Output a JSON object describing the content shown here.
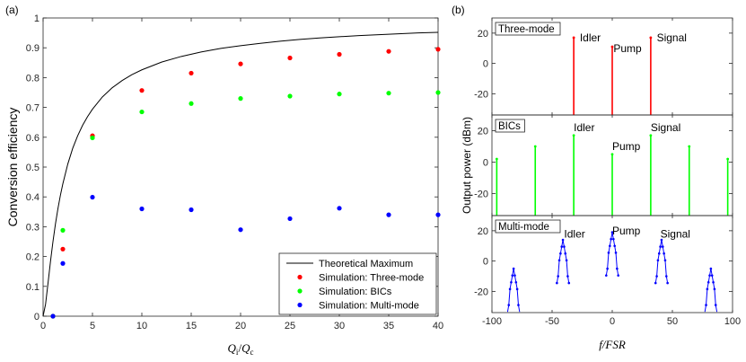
{
  "chart_data": [
    {
      "panel": "(a)",
      "type": "scatter",
      "xlabel": "Q_i/Q_c",
      "ylabel": "Conversion efficiency",
      "xlim": [
        0,
        40
      ],
      "ylim": [
        0,
        1
      ],
      "xticks": [
        0,
        5,
        10,
        15,
        20,
        25,
        30,
        35,
        40
      ],
      "yticks": [
        0,
        0.1,
        0.2,
        0.3,
        0.4,
        0.5,
        0.6,
        0.7,
        0.8,
        0.9,
        1
      ],
      "legend_position": "bottom-right",
      "grid": false,
      "series": [
        {
          "name": "Theoretical Maximum",
          "kind": "line",
          "color": "#000000",
          "x": [
            0,
            0.25,
            0.5,
            0.75,
            1,
            1.25,
            1.5,
            1.75,
            2,
            2.5,
            3,
            3.5,
            4,
            4.5,
            5,
            6,
            7,
            8,
            9,
            10,
            12,
            14,
            16,
            18,
            20,
            22,
            24,
            26,
            28,
            30,
            32,
            34,
            36,
            38,
            40
          ],
          "y": [
            0,
            0.04,
            0.111,
            0.184,
            0.25,
            0.309,
            0.36,
            0.405,
            0.444,
            0.51,
            0.563,
            0.605,
            0.64,
            0.669,
            0.694,
            0.735,
            0.766,
            0.79,
            0.81,
            0.826,
            0.852,
            0.871,
            0.886,
            0.898,
            0.907,
            0.915,
            0.922,
            0.928,
            0.933,
            0.937,
            0.941,
            0.944,
            0.947,
            0.95,
            0.952
          ]
        },
        {
          "name": "Simulation: Three-mode",
          "kind": "scatter",
          "color": "#ff0000",
          "x": [
            1,
            2,
            5,
            10,
            15,
            20,
            25,
            30,
            35,
            40
          ],
          "y": [
            0,
            0.225,
            0.605,
            0.757,
            0.815,
            0.846,
            0.866,
            0.878,
            0.888,
            0.895
          ]
        },
        {
          "name": "Simulation: BICs",
          "kind": "scatter",
          "color": "#00ff00",
          "x": [
            1,
            2,
            5,
            10,
            15,
            20,
            25,
            30,
            35,
            40
          ],
          "y": [
            0,
            0.288,
            0.598,
            0.685,
            0.713,
            0.73,
            0.738,
            0.745,
            0.748,
            0.75
          ]
        },
        {
          "name": "Simulation: Multi-mode",
          "kind": "scatter",
          "color": "#0000ff",
          "x": [
            1,
            2,
            5,
            10,
            15,
            20,
            25,
            30,
            35,
            40
          ],
          "y": [
            0,
            0.177,
            0.399,
            0.36,
            0.357,
            0.29,
            0.327,
            0.362,
            0.34,
            0.34
          ]
        }
      ]
    },
    {
      "panel": "(b)",
      "type": "line",
      "xlabel": "f/FSR",
      "ylabel": "Output power (dBm)",
      "xlim": [
        -100,
        100
      ],
      "xticks": [
        -100,
        -50,
        0,
        50,
        100
      ],
      "subplots": [
        {
          "tag": "Three-mode",
          "color": "#ff0000",
          "ylim": [
            -34,
            30
          ],
          "yticks": [
            -20,
            0,
            20
          ],
          "lines": [
            {
              "x": -32,
              "y": 17
            },
            {
              "x": 0,
              "y": 11
            },
            {
              "x": 32,
              "y": 17
            }
          ],
          "annotations": [
            {
              "text": "Idler",
              "x": -27,
              "y": 17
            },
            {
              "text": "Pump",
              "x": 1,
              "y": 10
            },
            {
              "text": "Signal",
              "x": 37,
              "y": 17
            }
          ]
        },
        {
          "tag": "BICs",
          "color": "#00ff00",
          "ylim": [
            -34,
            30
          ],
          "yticks": [
            -20,
            0,
            20
          ],
          "lines": [
            {
              "x": -96,
              "y": 2
            },
            {
              "x": -64,
              "y": 10
            },
            {
              "x": -32,
              "y": 17
            },
            {
              "x": 0,
              "y": 5
            },
            {
              "x": 32,
              "y": 17
            },
            {
              "x": 64,
              "y": 10
            },
            {
              "x": 96,
              "y": 2
            }
          ],
          "annotations": [
            {
              "text": "Idler",
              "x": -32,
              "y": 22
            },
            {
              "text": "Pump",
              "x": 0,
              "y": 10
            },
            {
              "text": "Signal",
              "x": 32,
              "y": 22
            }
          ]
        },
        {
          "tag": "Multi-mode",
          "color": "#0000ff",
          "ylim": [
            -34,
            30
          ],
          "yticks": [
            -20,
            0,
            20
          ],
          "peaks": [
            {
              "center": -82,
              "height": -5
            },
            {
              "center": -41,
              "height": 14
            },
            {
              "center": 0,
              "height": 19
            },
            {
              "center": 41,
              "height": 14
            },
            {
              "center": 82,
              "height": -5
            }
          ],
          "annotations": [
            {
              "text": "Idler",
              "x": -40,
              "y": 18
            },
            {
              "text": "Pump",
              "x": 0,
              "y": 20
            },
            {
              "text": "Signal",
              "x": 40,
              "y": 18
            }
          ]
        }
      ]
    }
  ]
}
